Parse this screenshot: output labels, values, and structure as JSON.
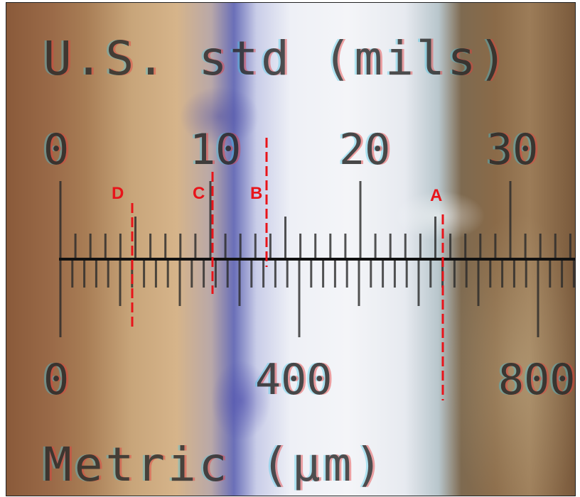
{
  "us_scale": {
    "title": "U.S. std (mils)",
    "labels": [
      "0",
      "10",
      "20",
      "30"
    ]
  },
  "metric_scale": {
    "title": "Metric (μm)",
    "labels": [
      "0",
      "400",
      "800"
    ]
  },
  "markers": [
    {
      "label": "D"
    },
    {
      "label": "C"
    },
    {
      "label": "B"
    },
    {
      "label": "A"
    }
  ],
  "colors": {
    "marker": "#e8141a",
    "scale_line": "#111111"
  }
}
